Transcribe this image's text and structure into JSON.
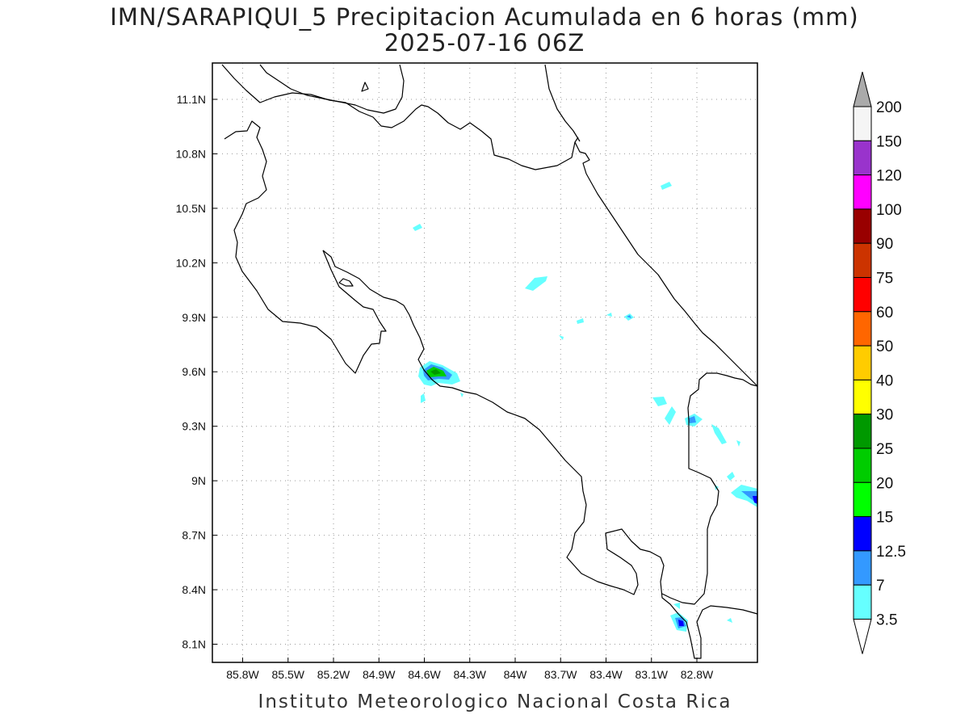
{
  "title_line1": "IMN/SARAPIQUI_5 Precipitacion Acumulada en 6 horas (mm)",
  "title_line2": "2025-07-16 06Z",
  "footer": "Instituto Meteorologico Nacional Costa Rica",
  "map": {
    "lon_range": [
      -86.0,
      -82.4
    ],
    "lat_range": [
      8.0,
      11.3
    ],
    "lon_ticks": [
      "85.8W",
      "85.5W",
      "85.2W",
      "84.9W",
      "84.6W",
      "84.3W",
      "84W",
      "83.7W",
      "83.4W",
      "83.1W",
      "82.8W"
    ],
    "lat_ticks": [
      "11.1N",
      "10.8N",
      "10.5N",
      "10.2N",
      "9.9N",
      "9.6N",
      "9.3N",
      "9N",
      "8.7N",
      "8.4N",
      "8.1N"
    ],
    "grid": true
  },
  "colorbar": {
    "levels": [
      "3.5",
      "7",
      "12.5",
      "15",
      "20",
      "25",
      "30",
      "40",
      "50",
      "60",
      "75",
      "90",
      "100",
      "120",
      "150",
      "200"
    ],
    "colors": [
      "#66ffff",
      "#3399ff",
      "#0000ff",
      "#00ff00",
      "#00cc00",
      "#009900",
      "#ffff00",
      "#ffcc00",
      "#ff6600",
      "#ff0000",
      "#cc3300",
      "#990000",
      "#ff00ff",
      "#9933cc",
      "#f5f5f5",
      "#aaaaaa"
    ]
  }
}
